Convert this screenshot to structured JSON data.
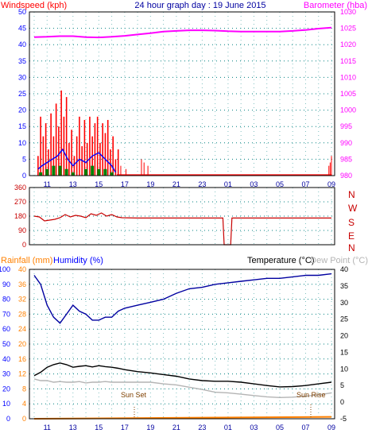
{
  "colors": {
    "wind": "#ff0000",
    "gust": "#ff0000",
    "direction_avg": "#0000ff",
    "beaufort": "#008000",
    "barometer": "#ff00ff",
    "wind_dir": "#c80000",
    "humidity": "#0000a0",
    "temperature": "#000000",
    "dew_point": "#b4b4b4",
    "rainfall": "#ff8000",
    "axis_blue": "#0000ff",
    "title_blue": "#0000a0",
    "label_red": "#ff0000",
    "dir_red": "#c80000",
    "grid": "#008080",
    "grid_vertical": "#80c0c0",
    "annotation": "#804000"
  },
  "top": {
    "title": "24 hour graph day : 19 June 2015",
    "left_label": "Windspeed (kph)",
    "right_label": "Barometer (hba)"
  },
  "middle": {
    "direction_labels": [
      "N",
      "W",
      "S",
      "E",
      "N"
    ]
  },
  "bottom": {
    "rainfall_label": "Rainfall (mm)",
    "humidity_label": "Humidity (%)",
    "temperature_label": "Temperature (°C)",
    "dew_label": "Dew Point (°C)",
    "sunset_label": "Sun Set",
    "sunrise_label": "Sun Rise"
  },
  "chart_data": [
    {
      "type": "line",
      "name": "wind-barometer",
      "title": "24 hour graph day : 19 June 2015",
      "x_ticks": [
        "11",
        "13",
        "15",
        "17",
        "19",
        "21",
        "23",
        "01",
        "03",
        "05",
        "07",
        "09"
      ],
      "y_left": {
        "label": "Windspeed (kph)",
        "range": [
          0,
          50
        ],
        "ticks": [
          0,
          5,
          10,
          15,
          20,
          25,
          30,
          35,
          40,
          45,
          50
        ]
      },
      "y_right": {
        "label": "Barometer (hba)",
        "range": [
          980,
          1030
        ],
        "ticks": [
          980,
          985,
          990,
          995,
          1000,
          1005,
          1010,
          1015,
          1020,
          1025,
          1030
        ]
      },
      "gusts": [
        [
          10.3,
          6
        ],
        [
          10.5,
          18
        ],
        [
          10.7,
          12
        ],
        [
          10.9,
          16
        ],
        [
          11.1,
          8
        ],
        [
          11.3,
          19
        ],
        [
          11.5,
          12
        ],
        [
          11.7,
          22
        ],
        [
          11.9,
          15
        ],
        [
          12.1,
          26
        ],
        [
          12.3,
          18
        ],
        [
          12.5,
          24
        ],
        [
          12.7,
          10
        ],
        [
          12.9,
          14
        ],
        [
          13.1,
          6
        ],
        [
          13.3,
          12
        ],
        [
          13.5,
          18
        ],
        [
          13.7,
          9
        ],
        [
          13.9,
          17
        ],
        [
          14.1,
          10
        ],
        [
          14.3,
          18
        ],
        [
          14.5,
          12
        ],
        [
          14.7,
          16
        ],
        [
          14.9,
          18
        ],
        [
          15.1,
          10
        ],
        [
          15.3,
          16
        ],
        [
          15.5,
          13
        ],
        [
          15.7,
          17
        ],
        [
          15.9,
          8
        ],
        [
          16.1,
          12
        ],
        [
          16.3,
          5
        ],
        [
          16.5,
          8
        ]
      ],
      "wind_avg": [
        [
          10.3,
          2
        ],
        [
          10.6,
          3
        ],
        [
          11.0,
          4
        ],
        [
          11.4,
          5
        ],
        [
          11.8,
          6
        ],
        [
          12.2,
          8
        ],
        [
          12.6,
          5
        ],
        [
          13.0,
          3
        ],
        [
          13.5,
          5
        ],
        [
          14.0,
          4
        ],
        [
          14.5,
          6
        ],
        [
          15.0,
          7
        ],
        [
          15.5,
          5
        ],
        [
          16.0,
          3
        ],
        [
          16.3,
          1
        ]
      ],
      "beaufort": [
        [
          10.5,
          1
        ],
        [
          11.0,
          2
        ],
        [
          11.5,
          3
        ],
        [
          12.0,
          3
        ],
        [
          12.5,
          2
        ],
        [
          13.0,
          1
        ],
        [
          14.0,
          2
        ],
        [
          14.5,
          3
        ],
        [
          15.0,
          2
        ],
        [
          15.5,
          2
        ],
        [
          16.0,
          1
        ]
      ],
      "late_gusts": [
        [
          16.7,
          3
        ],
        [
          17.1,
          2
        ],
        [
          18.3,
          5
        ],
        [
          18.5,
          4
        ],
        [
          18.8,
          3
        ],
        [
          8.8,
          3
        ],
        [
          8.9,
          4
        ],
        [
          9.0,
          6
        ]
      ],
      "barometer": [
        [
          10.0,
          1022.3
        ],
        [
          11.0,
          1022.4
        ],
        [
          12.0,
          1022.6
        ],
        [
          13.0,
          1022.6
        ],
        [
          14.0,
          1022.3
        ],
        [
          15.0,
          1022.2
        ],
        [
          16.0,
          1022.4
        ],
        [
          17.0,
          1022.7
        ],
        [
          18.0,
          1023.1
        ],
        [
          19.0,
          1023.5
        ],
        [
          20.0,
          1024.0
        ],
        [
          21.0,
          1024.2
        ],
        [
          22.0,
          1024.4
        ],
        [
          23.0,
          1024.4
        ],
        [
          24.0,
          1024.3
        ],
        [
          1.0,
          1024.1
        ],
        [
          2.0,
          1024.0
        ],
        [
          3.0,
          1024.0
        ],
        [
          4.0,
          1024.0
        ],
        [
          5.0,
          1024.0
        ],
        [
          6.0,
          1024.2
        ],
        [
          7.0,
          1024.5
        ],
        [
          8.0,
          1024.9
        ],
        [
          9.0,
          1025.2
        ]
      ]
    },
    {
      "type": "line",
      "name": "wind-direction",
      "y_ticks": [
        0,
        90,
        180,
        270,
        360
      ],
      "range": [
        0,
        360
      ],
      "points": [
        [
          10.0,
          180
        ],
        [
          10.4,
          175
        ],
        [
          10.8,
          150
        ],
        [
          11.2,
          155
        ],
        [
          11.6,
          160
        ],
        [
          12.0,
          170
        ],
        [
          12.4,
          190
        ],
        [
          12.8,
          175
        ],
        [
          13.2,
          185
        ],
        [
          13.6,
          180
        ],
        [
          14.0,
          170
        ],
        [
          14.4,
          195
        ],
        [
          14.8,
          185
        ],
        [
          15.2,
          200
        ],
        [
          15.6,
          180
        ],
        [
          16.0,
          190
        ],
        [
          16.4,
          175
        ],
        [
          16.8,
          170
        ],
        [
          18.0,
          168
        ],
        [
          20.0,
          168
        ],
        [
          22.0,
          168
        ],
        [
          24.0,
          168
        ],
        [
          0.6,
          168
        ],
        [
          0.7,
          0
        ],
        [
          1.2,
          0
        ],
        [
          1.3,
          168
        ],
        [
          3.0,
          168
        ],
        [
          5.0,
          168
        ],
        [
          7.0,
          168
        ],
        [
          9.0,
          168
        ]
      ]
    },
    {
      "type": "line",
      "name": "humidity-temperature",
      "x_ticks": [
        "11",
        "13",
        "15",
        "17",
        "19",
        "21",
        "23",
        "01",
        "03",
        "05",
        "07",
        "09"
      ],
      "y_left": {
        "label": "Rainfall (mm) / Humidity (%)",
        "range": [
          0,
          100
        ],
        "ticks": [
          0,
          10,
          20,
          30,
          40,
          50,
          60,
          70,
          80,
          90,
          100
        ]
      },
      "y_right": {
        "label": "Temperature (°C)",
        "range": [
          -5,
          40
        ],
        "ticks": [
          -5,
          0,
          5,
          10,
          15,
          20,
          25,
          30,
          35,
          40
        ]
      },
      "humidity": [
        [
          10.0,
          96
        ],
        [
          10.5,
          90
        ],
        [
          11.0,
          76
        ],
        [
          11.5,
          68
        ],
        [
          12.0,
          64
        ],
        [
          12.5,
          70
        ],
        [
          13.0,
          76
        ],
        [
          13.5,
          72
        ],
        [
          14.0,
          70
        ],
        [
          14.5,
          66
        ],
        [
          15.0,
          66
        ],
        [
          15.5,
          68
        ],
        [
          16.0,
          68
        ],
        [
          16.5,
          72
        ],
        [
          17.0,
          74
        ],
        [
          18.0,
          76
        ],
        [
          19.0,
          78
        ],
        [
          20.0,
          80
        ],
        [
          21.0,
          84
        ],
        [
          22.0,
          87
        ],
        [
          23.0,
          88
        ],
        [
          24.0,
          90
        ],
        [
          1.0,
          91
        ],
        [
          2.0,
          92
        ],
        [
          3.0,
          93
        ],
        [
          4.0,
          94
        ],
        [
          5.0,
          94
        ],
        [
          6.0,
          95
        ],
        [
          7.0,
          96
        ],
        [
          8.0,
          96
        ],
        [
          9.0,
          97
        ]
      ],
      "temperature": [
        [
          10.0,
          8
        ],
        [
          10.5,
          9
        ],
        [
          11.0,
          10.5
        ],
        [
          11.5,
          11.3
        ],
        [
          12.0,
          11.8
        ],
        [
          12.5,
          11.3
        ],
        [
          13.0,
          10.5
        ],
        [
          13.5,
          10.8
        ],
        [
          14.0,
          11.0
        ],
        [
          14.5,
          10.6
        ],
        [
          15.0,
          11.0
        ],
        [
          15.5,
          10.7
        ],
        [
          16.0,
          10.5
        ],
        [
          16.5,
          10.2
        ],
        [
          17.0,
          9.8
        ],
        [
          18.0,
          9.2
        ],
        [
          19.0,
          8.8
        ],
        [
          20.0,
          8.3
        ],
        [
          21.0,
          7.8
        ],
        [
          22.0,
          7.0
        ],
        [
          23.0,
          6.5
        ],
        [
          24.0,
          6.3
        ],
        [
          1.0,
          6.3
        ],
        [
          2.0,
          6.0
        ],
        [
          3.0,
          5.5
        ],
        [
          4.0,
          5.0
        ],
        [
          5.0,
          4.6
        ],
        [
          6.0,
          4.7
        ],
        [
          7.0,
          5.0
        ],
        [
          8.0,
          5.5
        ],
        [
          9.0,
          6.0
        ]
      ],
      "dew_point": [
        [
          10.0,
          7
        ],
        [
          10.5,
          6.5
        ],
        [
          11.0,
          6.5
        ],
        [
          11.5,
          6.0
        ],
        [
          12.0,
          6.2
        ],
        [
          12.5,
          6.0
        ],
        [
          13.0,
          6.0
        ],
        [
          13.5,
          6.2
        ],
        [
          14.0,
          5.8
        ],
        [
          14.5,
          6.0
        ],
        [
          15.0,
          6.0
        ],
        [
          15.5,
          6.2
        ],
        [
          16.0,
          6.0
        ],
        [
          17.0,
          6.0
        ],
        [
          18.0,
          6.0
        ],
        [
          19.0,
          6.0
        ],
        [
          20.0,
          5.5
        ],
        [
          21.0,
          5.2
        ],
        [
          22.0,
          4.5
        ],
        [
          23.0,
          3.8
        ],
        [
          24.0,
          3.0
        ],
        [
          1.0,
          2.8
        ],
        [
          2.0,
          2.4
        ],
        [
          3.0,
          2.0
        ],
        [
          4.0,
          1.6
        ],
        [
          5.0,
          1.4
        ],
        [
          6.0,
          1.5
        ],
        [
          7.0,
          1.8
        ],
        [
          8.0,
          2.2
        ],
        [
          9.0,
          2.8
        ]
      ],
      "rainfall": [
        [
          10.0,
          0
        ],
        [
          9.0,
          0.5
        ]
      ]
    }
  ]
}
